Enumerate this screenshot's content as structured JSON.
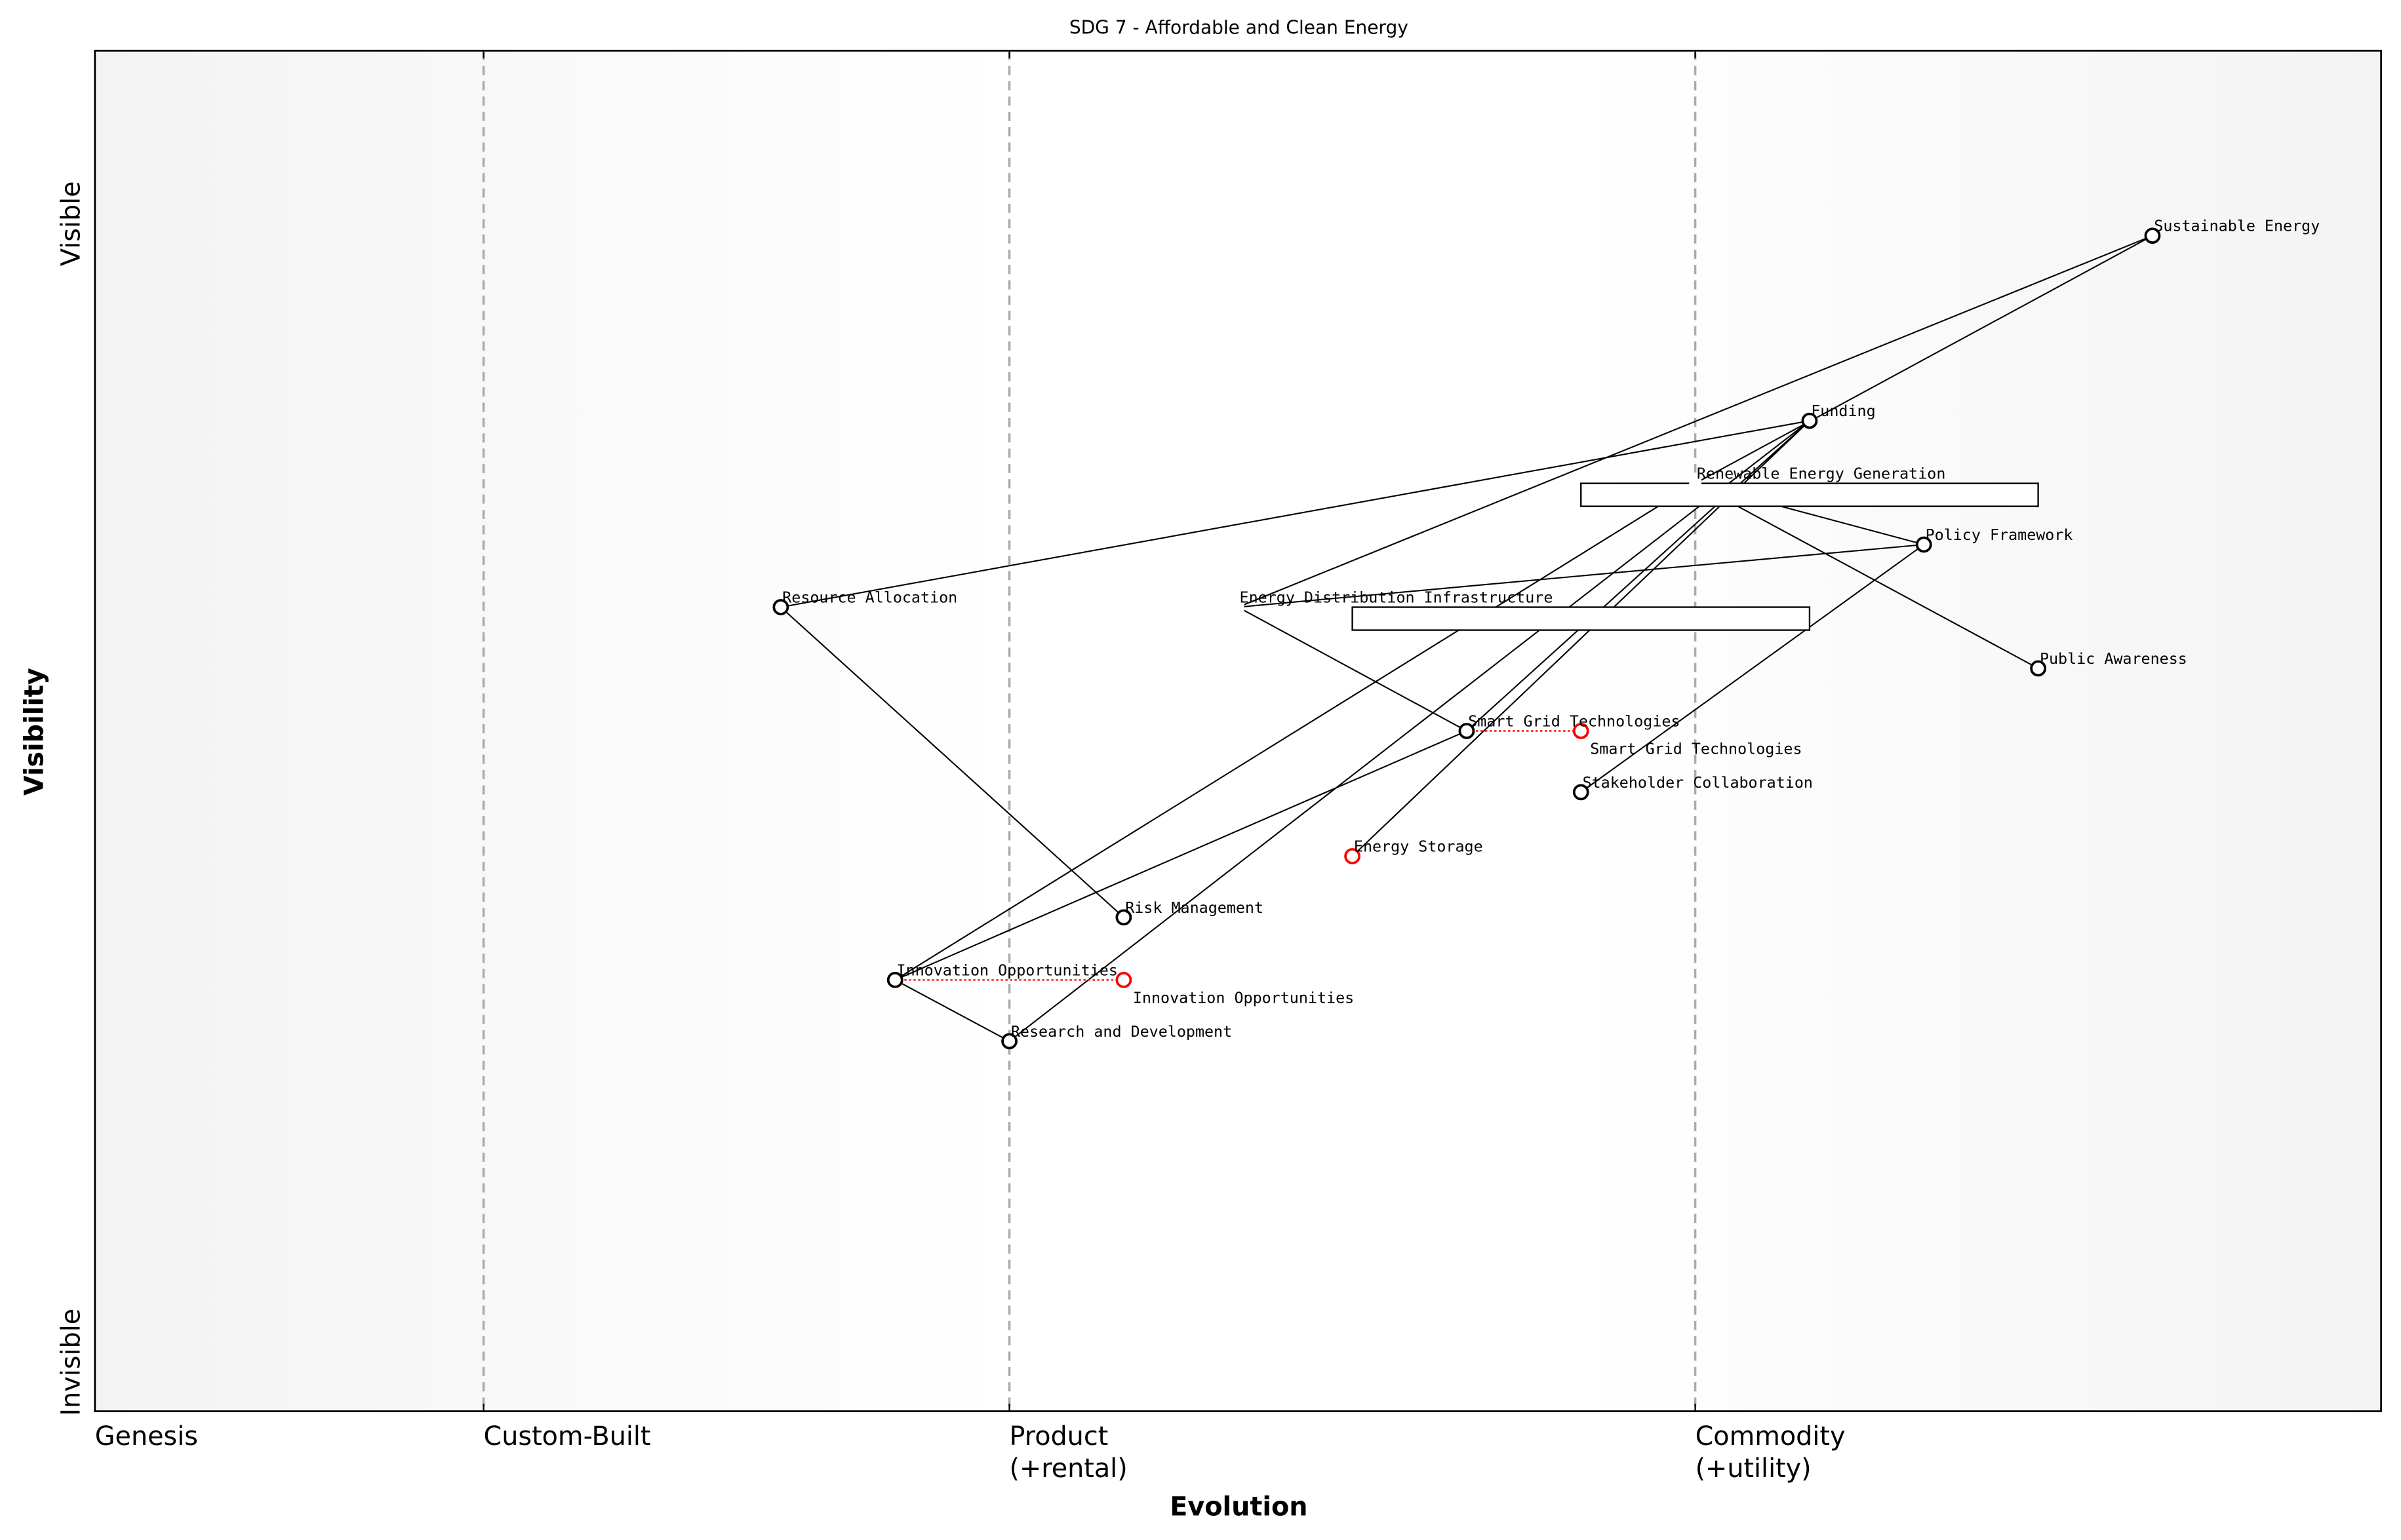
{
  "title": "SDG 7 - Affordable and Clean Energy",
  "x_axis": {
    "label": "Evolution",
    "stages": [
      {
        "lines": [
          "Genesis"
        ],
        "at": 0.0
      },
      {
        "lines": [
          "Custom-Built"
        ],
        "at": 0.17
      },
      {
        "lines": [
          "Product",
          "(+rental)"
        ],
        "at": 0.4
      },
      {
        "lines": [
          "Commodity",
          "(+utility)"
        ],
        "at": 0.7
      }
    ]
  },
  "y_axis": {
    "label": "Visibility",
    "top": "Visible",
    "bottom": "Invisible"
  },
  "colors": {
    "node": "#000000",
    "evolved": "#ff0000",
    "divider": "#aaaaaa",
    "band": "#f3f3f3"
  },
  "components": [
    {
      "id": "sustainable",
      "name": "Sustainable Energy",
      "evolution": 0.9,
      "visibility": 0.864
    },
    {
      "id": "funding",
      "name": "Funding",
      "evolution": 0.75,
      "visibility": 0.728
    },
    {
      "id": "renewable",
      "name": "Renewable Energy Generation",
      "evolution": 0.7,
      "visibility": 0.682,
      "hidden_marker": true
    },
    {
      "id": "policy",
      "name": "Policy Framework",
      "evolution": 0.8,
      "visibility": 0.637
    },
    {
      "id": "awareness",
      "name": "Public Awareness",
      "evolution": 0.85,
      "visibility": 0.546
    },
    {
      "id": "resource",
      "name": "Resource Allocation",
      "evolution": 0.3,
      "visibility": 0.591
    },
    {
      "id": "distribution",
      "name": "Energy Distribution Infrastructure",
      "evolution": 0.5,
      "visibility": 0.591,
      "hidden_marker": true
    },
    {
      "id": "smartgrid",
      "name": "Smart Grid Technologies",
      "evolution": 0.6,
      "visibility": 0.5
    },
    {
      "id": "stakeholder",
      "name": "Stakeholder Collaboration",
      "evolution": 0.65,
      "visibility": 0.455
    },
    {
      "id": "storage",
      "name": "Energy Storage",
      "evolution": 0.55,
      "visibility": 0.408,
      "evolved": true
    },
    {
      "id": "risk",
      "name": "Risk Management",
      "evolution": 0.45,
      "visibility": 0.363
    },
    {
      "id": "innovation",
      "name": "Innovation Opportunities",
      "evolution": 0.35,
      "visibility": 0.317
    },
    {
      "id": "rnd",
      "name": "Research and Development",
      "evolution": 0.4,
      "visibility": 0.272
    }
  ],
  "evolutions": [
    {
      "from": "smartgrid",
      "name": "Smart Grid Technologies",
      "to_evolution": 0.65
    },
    {
      "from": "innovation",
      "name": "Innovation Opportunities",
      "to_evolution": 0.45
    }
  ],
  "pipelines": [
    {
      "component": "renewable",
      "start": 0.65,
      "end": 0.85
    },
    {
      "component": "distribution",
      "start": 0.55,
      "end": 0.75
    }
  ],
  "links": [
    [
      "sustainable",
      "distribution"
    ],
    [
      "sustainable",
      "renewable"
    ],
    [
      "funding",
      "resource"
    ],
    [
      "funding",
      "smartgrid"
    ],
    [
      "funding",
      "storage"
    ],
    [
      "funding",
      "rnd"
    ],
    [
      "renewable",
      "policy"
    ],
    [
      "renewable",
      "awareness"
    ],
    [
      "renewable",
      "innovation"
    ],
    [
      "distribution",
      "policy"
    ],
    [
      "distribution",
      "smartgrid"
    ],
    [
      "policy",
      "stakeholder"
    ],
    [
      "resource",
      "risk"
    ],
    [
      "smartgrid",
      "innovation"
    ],
    [
      "innovation",
      "rnd"
    ]
  ]
}
